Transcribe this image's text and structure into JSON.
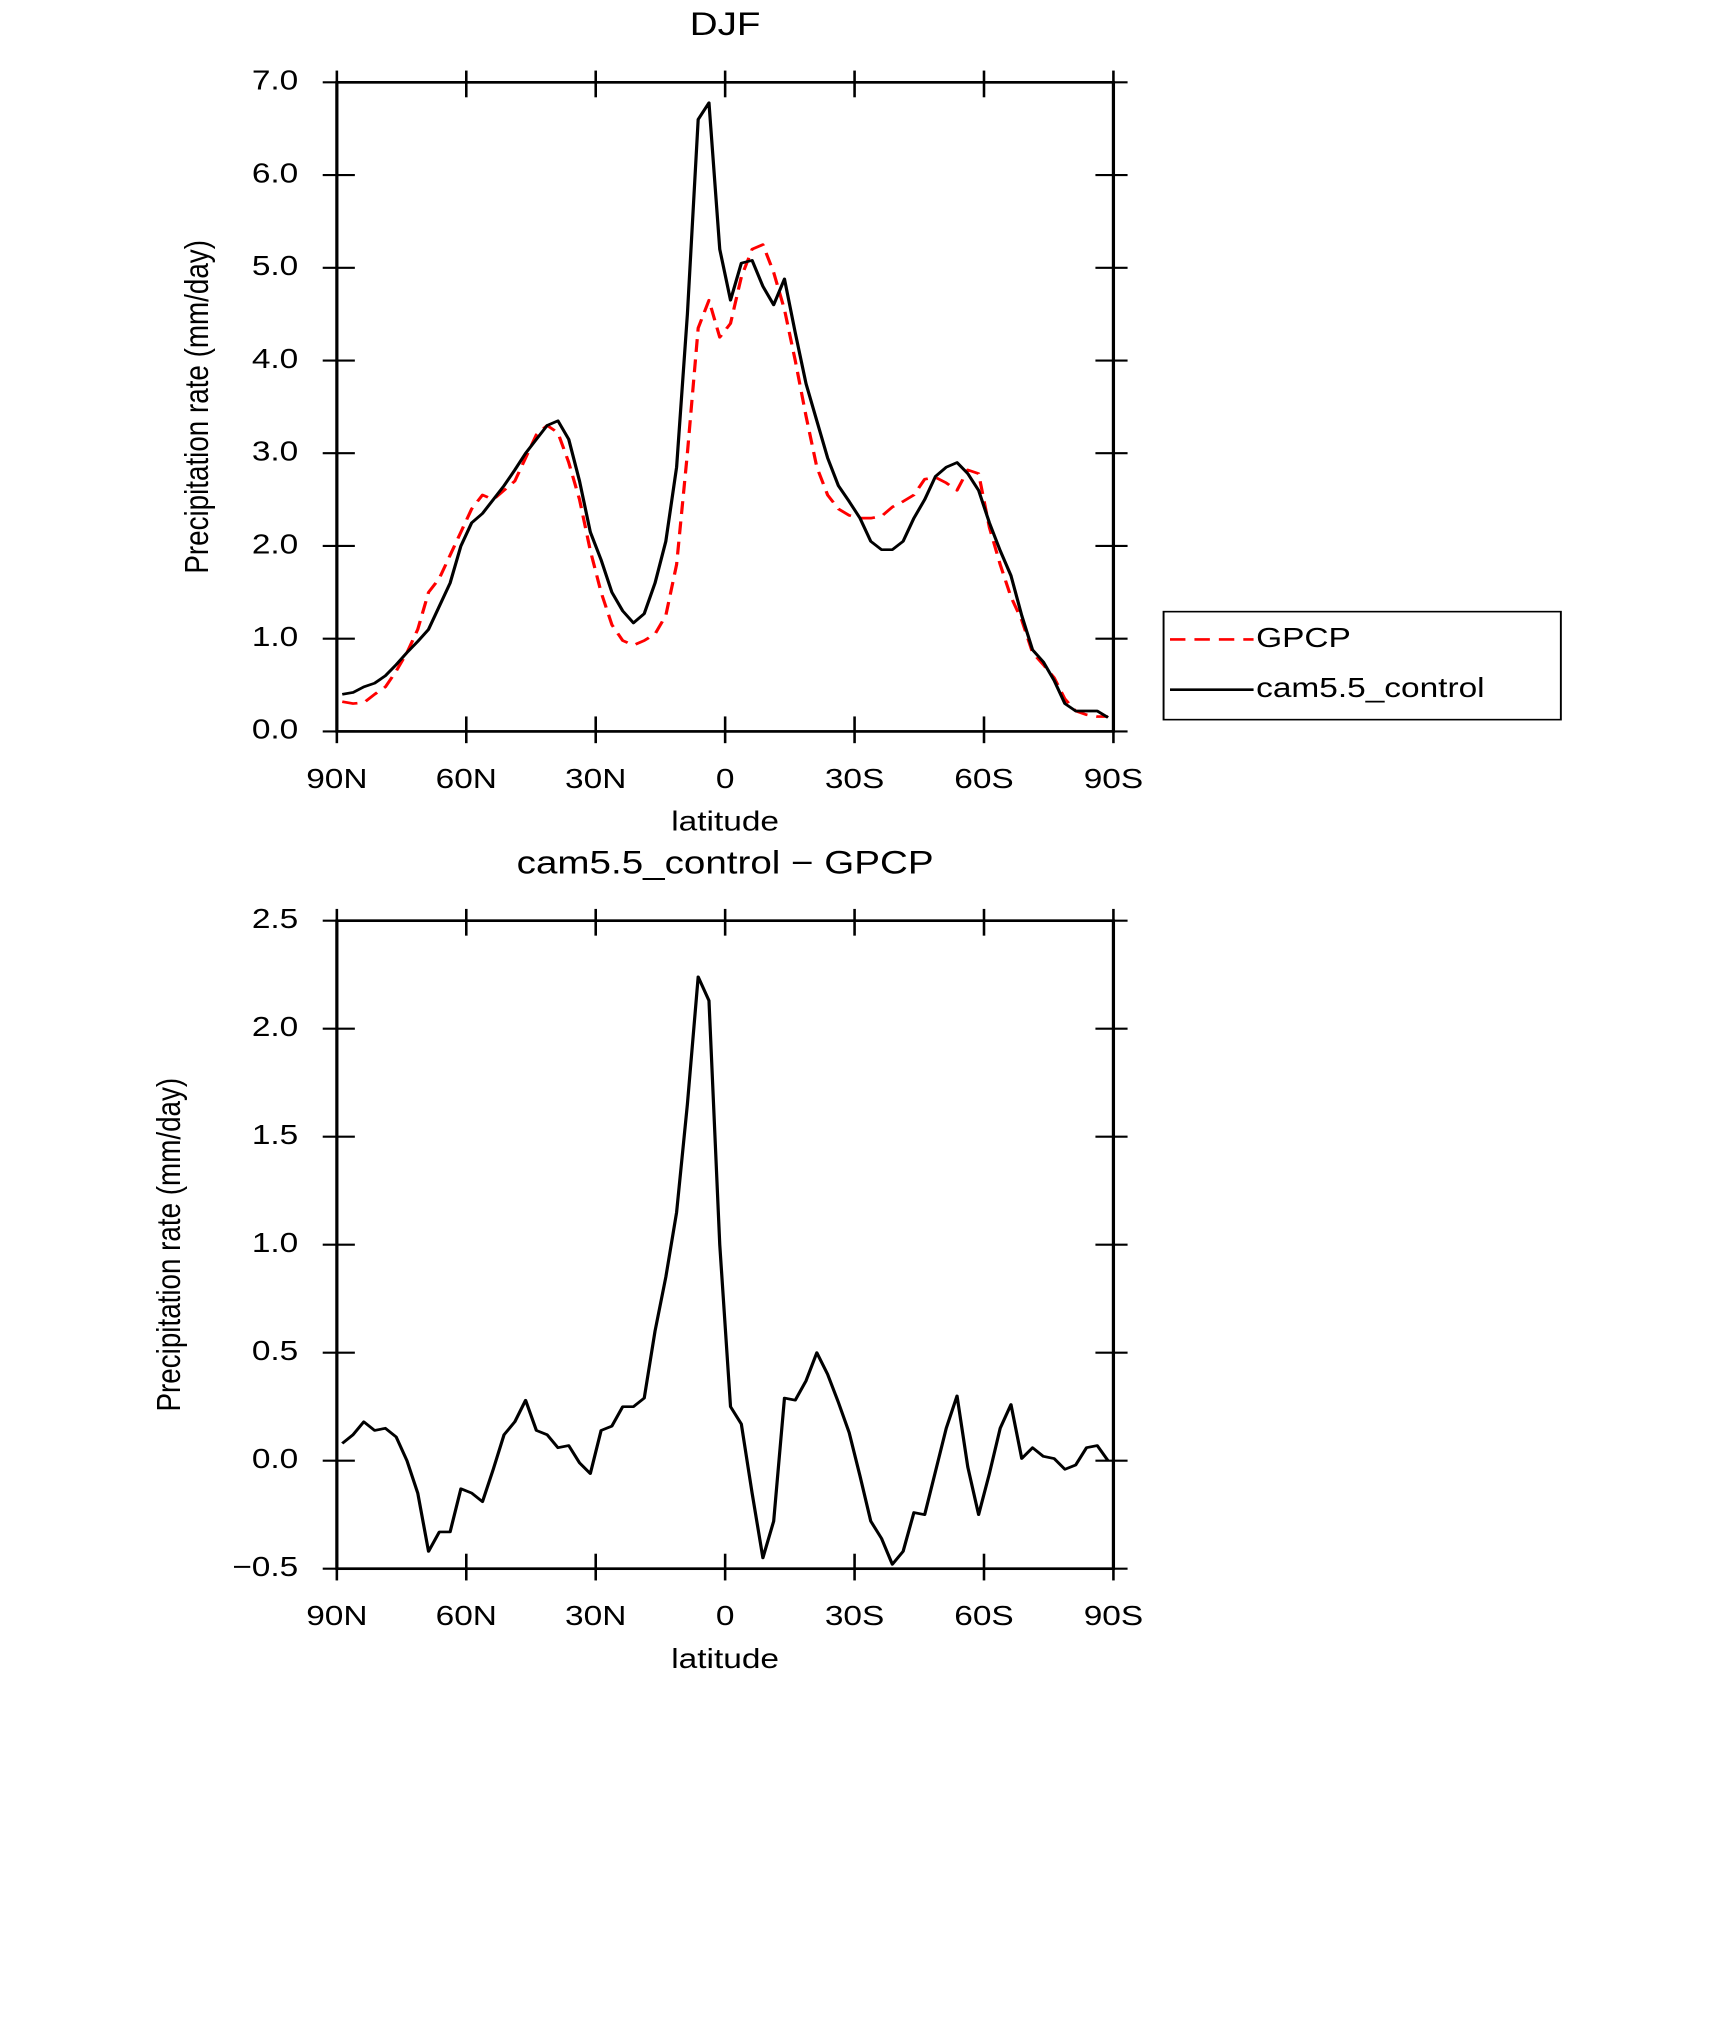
{
  "chart_data": [
    {
      "type": "line",
      "title": "DJF",
      "xlabel": "latitude",
      "ylabel": "Precipitation rate (mm/day)",
      "x": [
        88.75,
        86.25,
        83.75,
        81.25,
        78.75,
        76.25,
        73.75,
        71.25,
        68.75,
        66.25,
        63.75,
        61.25,
        58.75,
        56.25,
        53.75,
        51.25,
        48.75,
        46.25,
        43.75,
        41.25,
        38.75,
        36.25,
        33.75,
        31.25,
        28.75,
        26.25,
        23.75,
        21.25,
        18.75,
        16.25,
        13.75,
        11.25,
        8.75,
        6.25,
        3.75,
        1.25,
        -1.25,
        -3.75,
        -6.25,
        -8.75,
        -11.25,
        -13.75,
        -16.25,
        -18.75,
        -21.25,
        -23.75,
        -26.25,
        -28.75,
        -31.25,
        -33.75,
        -36.25,
        -38.75,
        -41.25,
        -43.75,
        -46.25,
        -48.75,
        -51.25,
        -53.75,
        -56.25,
        -58.75,
        -61.25,
        -63.75,
        -66.25,
        -68.75,
        -71.25,
        -73.75,
        -76.25,
        -78.75,
        -81.25,
        -83.75,
        -86.25,
        -88.75
      ],
      "series": [
        {
          "name": "GPCP",
          "color": "#ff0000",
          "dash": true,
          "values": [
            0.32,
            0.3,
            0.31,
            0.4,
            0.48,
            0.65,
            0.85,
            1.1,
            1.5,
            1.65,
            1.9,
            2.15,
            2.4,
            2.55,
            2.5,
            2.6,
            2.7,
            2.95,
            3.2,
            3.3,
            3.22,
            2.9,
            2.5,
            1.95,
            1.5,
            1.15,
            0.98,
            0.93,
            0.98,
            1.05,
            1.25,
            1.8,
            3.0,
            4.35,
            4.65,
            4.25,
            4.4,
            4.9,
            5.2,
            5.25,
            4.95,
            4.55,
            4.0,
            3.4,
            2.85,
            2.55,
            2.4,
            2.33,
            2.3,
            2.3,
            2.32,
            2.42,
            2.48,
            2.55,
            2.72,
            2.74,
            2.68,
            2.6,
            2.82,
            2.78,
            2.2,
            1.8,
            1.45,
            1.2,
            0.85,
            0.72,
            0.58,
            0.35,
            0.22,
            0.18,
            0.16,
            0.16
          ]
        },
        {
          "name": "cam5.5_control",
          "color": "#000000",
          "dash": false,
          "values": [
            0.4,
            0.42,
            0.48,
            0.52,
            0.6,
            0.72,
            0.85,
            0.97,
            1.1,
            1.35,
            1.6,
            2.0,
            2.25,
            2.35,
            2.5,
            2.65,
            2.82,
            3.0,
            3.15,
            3.3,
            3.35,
            3.15,
            2.7,
            2.15,
            1.85,
            1.5,
            1.3,
            1.17,
            1.27,
            1.6,
            2.05,
            2.85,
            4.5,
            6.6,
            6.78,
            5.2,
            4.65,
            5.05,
            5.08,
            4.8,
            4.6,
            4.88,
            4.3,
            3.75,
            3.35,
            2.95,
            2.65,
            2.48,
            2.3,
            2.05,
            1.96,
            1.96,
            2.05,
            2.3,
            2.5,
            2.75,
            2.85,
            2.9,
            2.78,
            2.6,
            2.25,
            1.95,
            1.68,
            1.25,
            0.88,
            0.75,
            0.55,
            0.3,
            0.22,
            0.22,
            0.22,
            0.15
          ]
        }
      ],
      "xlim": [
        90,
        -90
      ],
      "xticks": [
        {
          "value": 90,
          "label": "90N"
        },
        {
          "value": 60,
          "label": "60N"
        },
        {
          "value": 30,
          "label": "30N"
        },
        0,
        {
          "value": -30,
          "label": "30S"
        },
        {
          "value": -60,
          "label": "60S"
        },
        {
          "value": -90,
          "label": "90S"
        }
      ],
      "ylim": [
        0,
        7
      ],
      "yticks": [
        {
          "value": 0,
          "label": "0.0"
        },
        {
          "value": 1,
          "label": "1.0"
        },
        {
          "value": 2,
          "label": "2.0"
        },
        {
          "value": 3,
          "label": "3.0"
        },
        {
          "value": 4,
          "label": "4.0"
        },
        {
          "value": 5,
          "label": "5.0"
        },
        {
          "value": 6,
          "label": "6.0"
        },
        {
          "value": 7,
          "label": "7.0"
        }
      ],
      "legend": "right"
    },
    {
      "type": "line",
      "title": "cam5.5_control − GPCP",
      "xlabel": "latitude",
      "ylabel": "Precipitation rate (mm/day)",
      "x": [
        88.75,
        86.25,
        83.75,
        81.25,
        78.75,
        76.25,
        73.75,
        71.25,
        68.75,
        66.25,
        63.75,
        61.25,
        58.75,
        56.25,
        53.75,
        51.25,
        48.75,
        46.25,
        43.75,
        41.25,
        38.75,
        36.25,
        33.75,
        31.25,
        28.75,
        26.25,
        23.75,
        21.25,
        18.75,
        16.25,
        13.75,
        11.25,
        8.75,
        6.25,
        3.75,
        1.25,
        -1.25,
        -3.75,
        -6.25,
        -8.75,
        -11.25,
        -13.75,
        -16.25,
        -18.75,
        -21.25,
        -23.75,
        -26.25,
        -28.75,
        -31.25,
        -33.75,
        -36.25,
        -38.75,
        -41.25,
        -43.75,
        -46.25,
        -48.75,
        -51.25,
        -53.75,
        -56.25,
        -58.75,
        -61.25,
        -63.75,
        -66.25,
        -68.75,
        -71.25,
        -73.75,
        -76.25,
        -78.75,
        -81.25,
        -83.75,
        -86.25,
        -88.75
      ],
      "series": [
        {
          "color": "#000000",
          "dash": false,
          "values": [
            0.08,
            0.12,
            0.18,
            0.14,
            0.15,
            0.11,
            0.0,
            -0.15,
            -0.42,
            -0.33,
            -0.33,
            -0.13,
            -0.15,
            -0.19,
            -0.04,
            0.12,
            0.18,
            0.28,
            0.14,
            0.12,
            0.06,
            0.07,
            -0.01,
            -0.06,
            0.14,
            0.16,
            0.25,
            0.25,
            0.29,
            0.6,
            0.85,
            1.15,
            1.65,
            2.24,
            2.13,
            1.0,
            0.25,
            0.17,
            -0.15,
            -0.45,
            -0.28,
            0.29,
            0.28,
            0.37,
            0.5,
            0.4,
            0.27,
            0.13,
            -0.07,
            -0.28,
            -0.36,
            -0.48,
            -0.42,
            -0.24,
            -0.25,
            -0.05,
            0.15,
            0.3,
            -0.03,
            -0.25,
            -0.06,
            0.15,
            0.26,
            0.01,
            0.06,
            0.02,
            0.01,
            -0.04,
            -0.02,
            0.06,
            0.07,
            0.0
          ]
        }
      ],
      "xlim": [
        90,
        -90
      ],
      "xticks": [
        {
          "value": 90,
          "label": "90N"
        },
        {
          "value": 60,
          "label": "60N"
        },
        {
          "value": 30,
          "label": "30N"
        },
        0,
        {
          "value": -30,
          "label": "30S"
        },
        {
          "value": -60,
          "label": "60S"
        },
        {
          "value": -90,
          "label": "90S"
        }
      ],
      "ylim": [
        -0.5,
        2.5
      ],
      "yticks": [
        {
          "value": -0.5,
          "label": "−0.5"
        },
        {
          "value": 0,
          "label": "0.0"
        },
        {
          "value": 0.5,
          "label": "0.5"
        },
        {
          "value": 1,
          "label": "1.0"
        },
        {
          "value": 1.5,
          "label": "1.5"
        },
        {
          "value": 2,
          "label": "2.0"
        },
        {
          "value": 2.5,
          "label": "2.5"
        }
      ]
    }
  ]
}
